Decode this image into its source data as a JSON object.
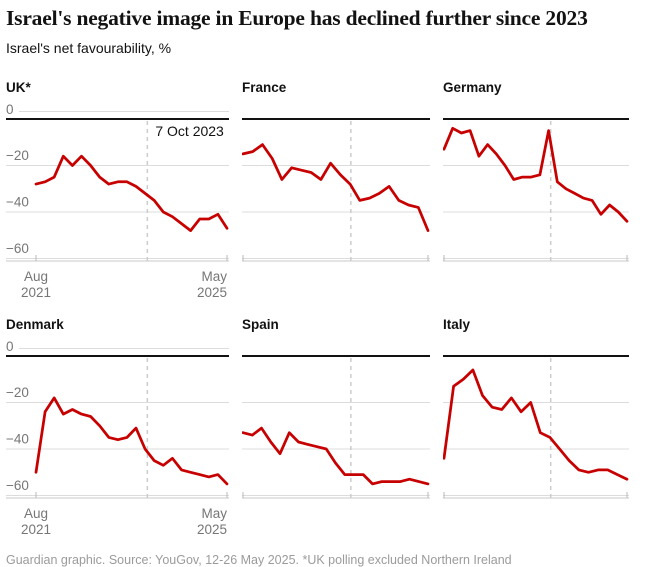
{
  "header": {
    "title": "Israel's negative image in Europe has declined further since 2023",
    "subtitle": "Israel's net favourability, %"
  },
  "footer": {
    "note": "Guardian graphic. Source: YouGov, 12-26 May 2025. *UK polling excluded Northern Ireland"
  },
  "colors": {
    "series_red": "#c70000",
    "zero_line": "#121212",
    "gridline": "#dcdcdc",
    "zero_label_rule": "#dcdcdc",
    "event_line": "#cccccc",
    "axis_line": "#c9c9c9",
    "axis_tick": "#b9b9b9",
    "tick_label": "#767676",
    "event_label_text": "#121212",
    "footer_text": "#9b9b9b"
  },
  "chart_data": {
    "type": "line",
    "layout": "small-multiples 2 rows x 3 cols, shared scales",
    "title": "Israel's negative image in Europe has declined further since 2023",
    "subtitle": "Israel's net favourability, %",
    "xlabel": "",
    "ylabel": "Israel's net favourability, %",
    "x_axis": {
      "start_label": "Aug 2021",
      "end_label": "May 2025"
    },
    "y_ticks": [
      0,
      -20,
      -40,
      -60
    ],
    "y_tick_labels": [
      "0",
      "−20",
      "−40",
      "−60"
    ],
    "ylim": [
      -62,
      0
    ],
    "grid": true,
    "event_line": {
      "label": "7 Oct 2023",
      "position_fraction": 0.583
    },
    "charts": [
      {
        "title": "UK*",
        "show_y_labels": true,
        "show_x_labels": true,
        "show_event_label": true,
        "values": [
          -28,
          -27,
          -25,
          -16,
          -20,
          -16,
          -20,
          -25,
          -28,
          -27,
          -27,
          -29,
          -32,
          -35,
          -40,
          -42,
          -45,
          -48,
          -43,
          -43,
          -41,
          -47
        ]
      },
      {
        "title": "France",
        "show_y_labels": false,
        "show_x_labels": false,
        "show_event_label": false,
        "values": [
          -15,
          -14,
          -11,
          -17,
          -26,
          -21,
          -22,
          -23,
          -26,
          -19,
          -24,
          -28,
          -35,
          -34,
          -32,
          -29,
          -35,
          -37,
          -38,
          -48
        ]
      },
      {
        "title": "Germany",
        "show_y_labels": false,
        "show_x_labels": false,
        "show_event_label": false,
        "values": [
          -13,
          -4,
          -6,
          -5,
          -16,
          -11,
          -15,
          -20,
          -26,
          -25,
          -25,
          -24,
          -5,
          -27,
          -30,
          -32,
          -34,
          -35,
          -41,
          -37,
          -40,
          -44
        ]
      },
      {
        "title": "Denmark",
        "show_y_labels": true,
        "show_x_labels": true,
        "show_event_label": false,
        "values": [
          -50,
          -24,
          -18,
          -25,
          -23,
          -25,
          -26,
          -30,
          -35,
          -36,
          -35,
          -31,
          -40,
          -45,
          -47,
          -44,
          -49,
          -50,
          -51,
          -52,
          -51,
          -55
        ]
      },
      {
        "title": "Spain",
        "show_y_labels": false,
        "show_x_labels": false,
        "show_event_label": false,
        "values": [
          -33,
          -34,
          -31,
          -37,
          -42,
          -33,
          -37,
          -38,
          -39,
          -40,
          -46,
          -51,
          -51,
          -51,
          -55,
          -54,
          -54,
          -54,
          -53,
          -54,
          -55
        ]
      },
      {
        "title": "Italy",
        "show_y_labels": false,
        "show_x_labels": false,
        "show_event_label": false,
        "values": [
          -44,
          -13,
          -10,
          -6,
          -17,
          -22,
          -23,
          -18,
          -24,
          -20,
          -33,
          -35,
          -40,
          -45,
          -49,
          -50,
          -49,
          -49,
          -51,
          -53
        ]
      }
    ]
  }
}
